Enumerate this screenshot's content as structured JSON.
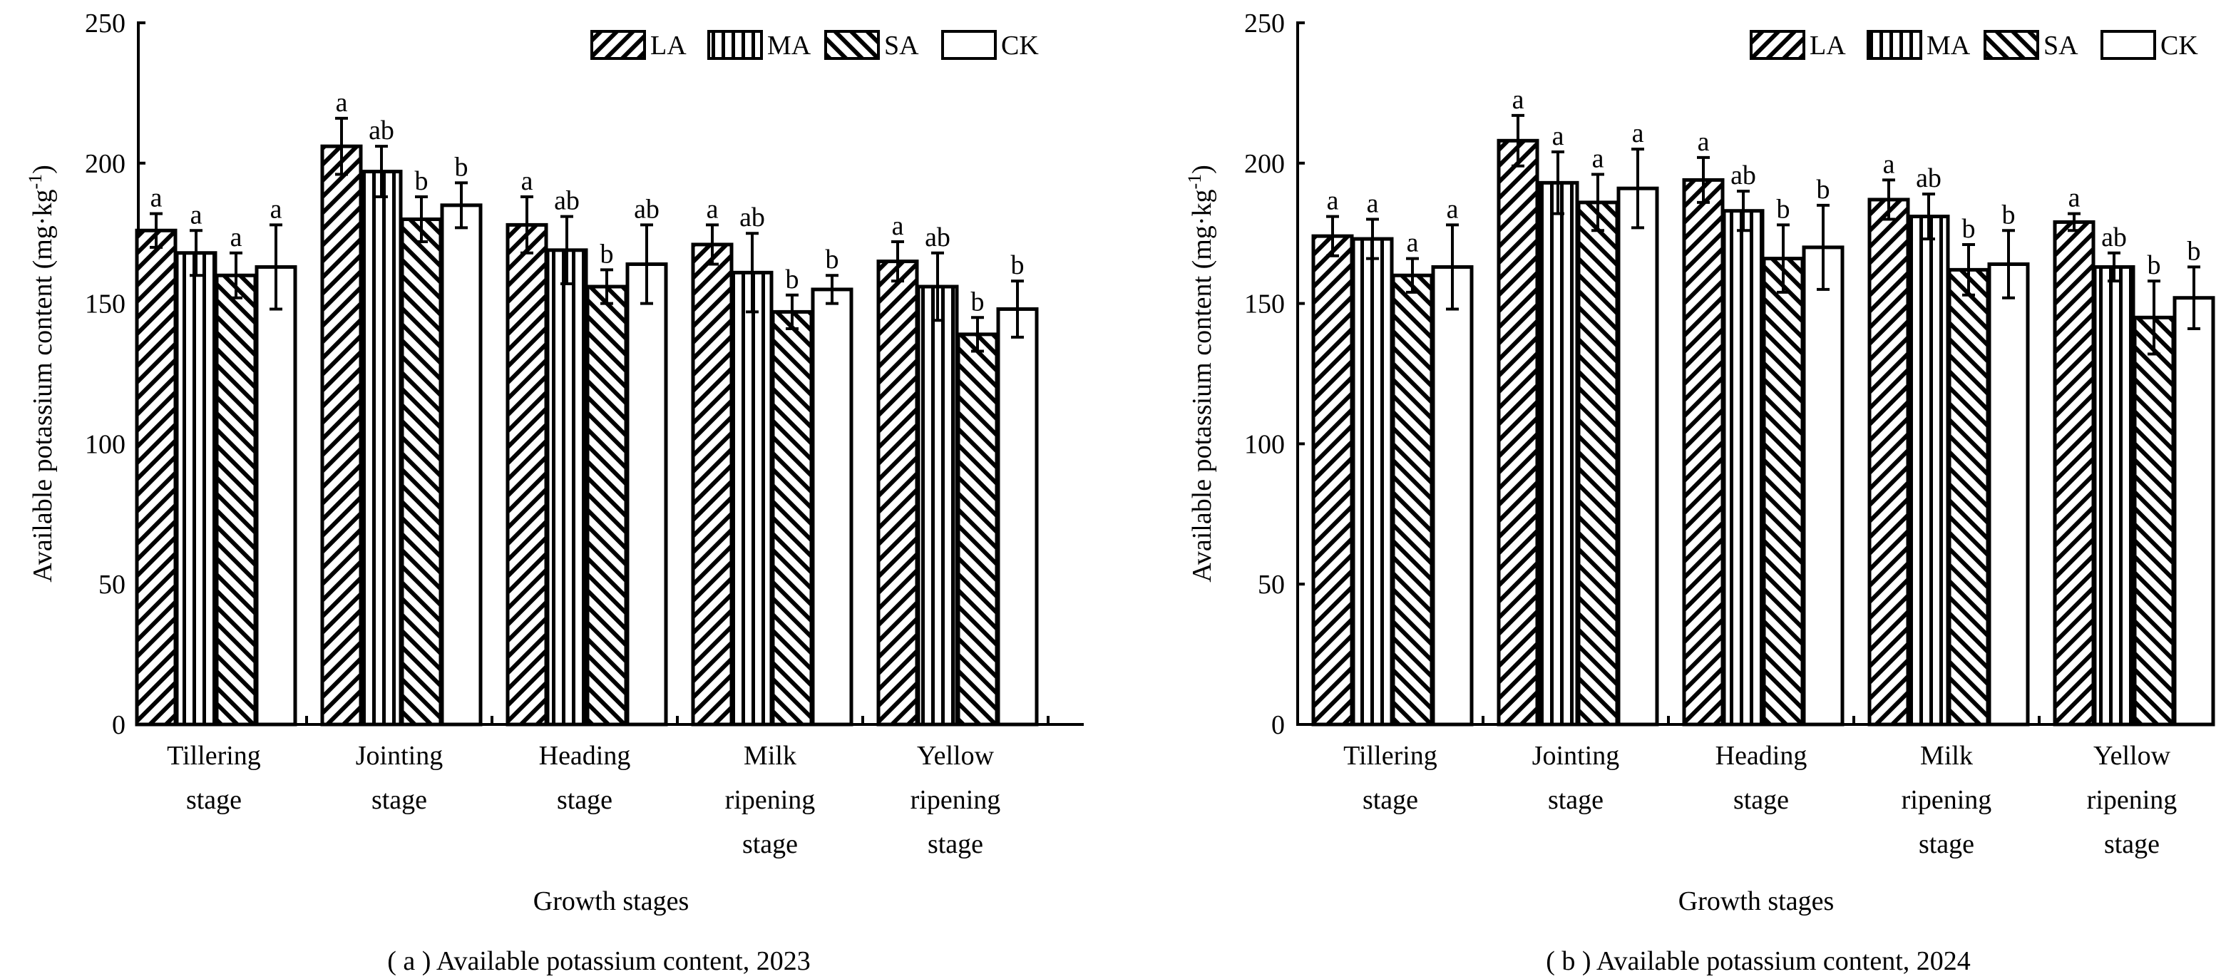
{
  "chart_data": [
    {
      "type": "bar",
      "title": "( a ) Available potassium content, 2023",
      "xlabel": "Growth stages",
      "ylabel": "Available potassium content (mg·kg",
      "ylabel_sup": "-1",
      "ylabel_end": ")",
      "ylim": [
        0,
        250
      ],
      "yticks": [
        0,
        50,
        100,
        150,
        200,
        250
      ],
      "legend_position": "top-right",
      "categories": [
        [
          "Tillering",
          "stage"
        ],
        [
          "Jointing",
          "stage"
        ],
        [
          "Heading",
          "stage"
        ],
        [
          "Milk",
          "ripening",
          "stage"
        ],
        [
          "Yellow",
          "ripening",
          "stage"
        ]
      ],
      "series": [
        {
          "name": "LA",
          "pattern": "backslash",
          "values": [
            176,
            206,
            178,
            171,
            165
          ],
          "errors": [
            6,
            10,
            10,
            7,
            7
          ],
          "letters": [
            "a",
            "a",
            "a",
            "a",
            "a"
          ]
        },
        {
          "name": "MA",
          "pattern": "vertical",
          "values": [
            168,
            197,
            169,
            161,
            156
          ],
          "errors": [
            8,
            9,
            12,
            14,
            12
          ],
          "letters": [
            "a",
            "ab",
            "ab",
            "ab",
            "ab"
          ]
        },
        {
          "name": "SA",
          "pattern": "slash",
          "values": [
            160,
            180,
            156,
            147,
            139
          ],
          "errors": [
            8,
            8,
            6,
            6,
            6
          ],
          "letters": [
            "a",
            "b",
            "b",
            "b",
            "b"
          ]
        },
        {
          "name": "CK",
          "pattern": "none",
          "values": [
            163,
            185,
            164,
            155,
            148
          ],
          "errors": [
            15,
            8,
            14,
            5,
            10
          ],
          "letters": [
            "a",
            "b",
            "ab",
            "b",
            "b"
          ]
        }
      ]
    },
    {
      "type": "bar",
      "title": "( b ) Available potassium content, 2024",
      "xlabel": "Growth stages",
      "ylabel": "Available potassium content (mg·kg",
      "ylabel_sup": "-1",
      "ylabel_end": ")",
      "ylim": [
        0,
        250
      ],
      "yticks": [
        0,
        50,
        100,
        150,
        200,
        250
      ],
      "legend_position": "top-right",
      "categories": [
        [
          "Tillering",
          "stage"
        ],
        [
          "Jointing",
          "stage"
        ],
        [
          "Heading",
          "stage"
        ],
        [
          "Milk",
          "ripening",
          "stage"
        ],
        [
          "Yellow",
          "ripening",
          "stage"
        ]
      ],
      "series": [
        {
          "name": "LA",
          "pattern": "backslash",
          "values": [
            174,
            208,
            194,
            187,
            179
          ],
          "errors": [
            7,
            9,
            8,
            7,
            3
          ],
          "letters": [
            "a",
            "a",
            "a",
            "a",
            "a"
          ]
        },
        {
          "name": "MA",
          "pattern": "vertical",
          "values": [
            173,
            193,
            183,
            181,
            163
          ],
          "errors": [
            7,
            11,
            7,
            8,
            5
          ],
          "letters": [
            "a",
            "a",
            "ab",
            "ab",
            "ab"
          ]
        },
        {
          "name": "SA",
          "pattern": "slash",
          "values": [
            160,
            186,
            166,
            162,
            145
          ],
          "errors": [
            6,
            10,
            12,
            9,
            13
          ],
          "letters": [
            "a",
            "a",
            "b",
            "b",
            "b"
          ]
        },
        {
          "name": "CK",
          "pattern": "none",
          "values": [
            163,
            191,
            170,
            164,
            152
          ],
          "errors": [
            15,
            14,
            15,
            12,
            11
          ],
          "letters": [
            "a",
            "a",
            "b",
            "b",
            "b"
          ]
        }
      ]
    }
  ]
}
